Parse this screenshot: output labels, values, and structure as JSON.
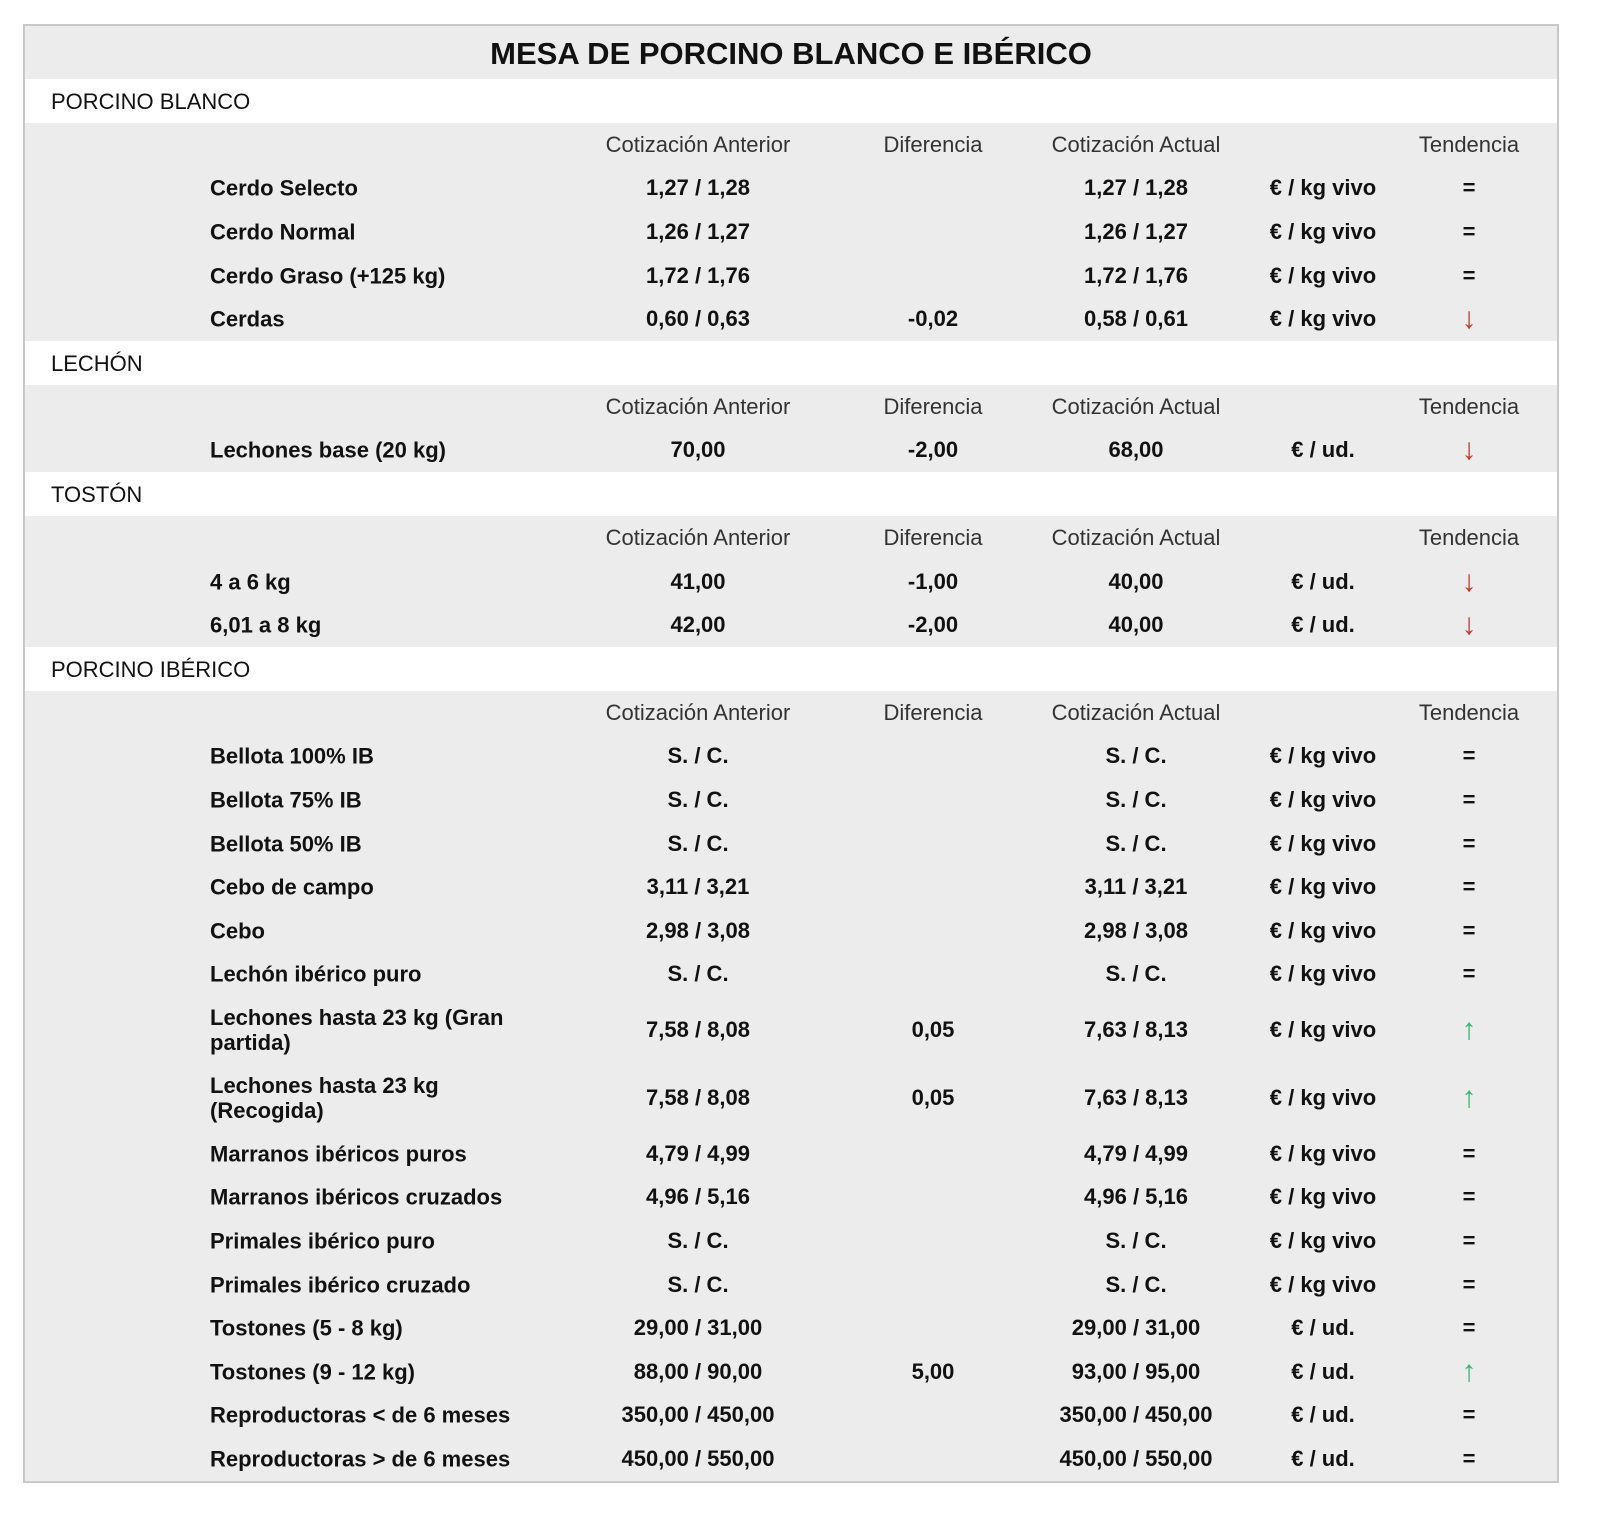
{
  "title": "MESA DE PORCINO BLANCO E IBÉRICO",
  "headers": [
    "Cotización Anterior",
    "Diferencia",
    "Cotización Actual",
    "",
    "Tendencia"
  ],
  "trend_colors": {
    "down": "#c0392b",
    "up": "#3cb371"
  },
  "sections": [
    {
      "name": "PORCINO BLANCO",
      "rows": [
        {
          "label": "Cerdo Selecto",
          "prev": "1,27 / 1,28",
          "diff": "",
          "curr": "1,27 / 1,28",
          "unit": "€ / kg vivo",
          "trend": "="
        },
        {
          "label": "Cerdo Normal",
          "prev": "1,26 / 1,27",
          "diff": "",
          "curr": "1,26 / 1,27",
          "unit": "€ / kg vivo",
          "trend": "="
        },
        {
          "label": "Cerdo Graso (+125 kg)",
          "prev": "1,72 / 1,76",
          "diff": "",
          "curr": "1,72 / 1,76",
          "unit": "€ / kg vivo",
          "trend": "="
        },
        {
          "label": "Cerdas",
          "prev": "0,60 / 0,63",
          "diff": "-0,02",
          "curr": "0,58 / 0,61",
          "unit": "€ / kg vivo",
          "trend": "down"
        }
      ]
    },
    {
      "name": "LECHÓN",
      "rows": [
        {
          "label": "Lechones base (20 kg)",
          "prev": "70,00",
          "diff": "-2,00",
          "curr": "68,00",
          "unit": "€ / ud.",
          "trend": "down"
        }
      ]
    },
    {
      "name": "TOSTÓN",
      "rows": [
        {
          "label": "4 a 6 kg",
          "prev": "41,00",
          "diff": "-1,00",
          "curr": "40,00",
          "unit": "€ / ud.",
          "trend": "down"
        },
        {
          "label": "6,01 a 8 kg",
          "prev": "42,00",
          "diff": "-2,00",
          "curr": "40,00",
          "unit": "€ / ud.",
          "trend": "down"
        }
      ]
    },
    {
      "name": "PORCINO IBÉRICO",
      "rows": [
        {
          "label": "Bellota 100% IB",
          "prev": "S. / C.",
          "diff": "",
          "curr": "S. / C.",
          "unit": "€ / kg vivo",
          "trend": "="
        },
        {
          "label": "Bellota 75% IB",
          "prev": "S. / C.",
          "diff": "",
          "curr": "S. / C.",
          "unit": "€ / kg vivo",
          "trend": "="
        },
        {
          "label": "Bellota 50% IB",
          "prev": "S. / C.",
          "diff": "",
          "curr": "S. / C.",
          "unit": "€ / kg vivo",
          "trend": "="
        },
        {
          "label": "Cebo de campo",
          "prev": "3,11 / 3,21",
          "diff": "",
          "curr": "3,11 / 3,21",
          "unit": "€ / kg vivo",
          "trend": "="
        },
        {
          "label": "Cebo",
          "prev": "2,98 / 3,08",
          "diff": "",
          "curr": "2,98 / 3,08",
          "unit": "€ / kg vivo",
          "trend": "="
        },
        {
          "label": "Lechón ibérico puro",
          "prev": "S. / C.",
          "diff": "",
          "curr": "S. / C.",
          "unit": "€ / kg vivo",
          "trend": "="
        },
        {
          "label": "Lechones hasta 23 kg (Gran partida)",
          "prev": "7,58 / 8,08",
          "diff": "0,05",
          "curr": "7,63 / 8,13",
          "unit": "€ / kg vivo",
          "trend": "up",
          "tall": true
        },
        {
          "label": "Lechones hasta 23 kg (Recogida)",
          "prev": "7,58 / 8,08",
          "diff": "0,05",
          "curr": "7,63 / 8,13",
          "unit": "€ / kg vivo",
          "trend": "up",
          "tall": true
        },
        {
          "label": "Marranos ibéricos puros",
          "prev": "4,79 / 4,99",
          "diff": "",
          "curr": "4,79 / 4,99",
          "unit": "€ / kg vivo",
          "trend": "="
        },
        {
          "label": "Marranos ibéricos cruzados",
          "prev": "4,96 / 5,16",
          "diff": "",
          "curr": "4,96 / 5,16",
          "unit": "€ / kg vivo",
          "trend": "="
        },
        {
          "label": "Primales ibérico puro",
          "prev": "S. / C.",
          "diff": "",
          "curr": "S. / C.",
          "unit": "€ / kg vivo",
          "trend": "="
        },
        {
          "label": "Primales ibérico cruzado",
          "prev": "S. / C.",
          "diff": "",
          "curr": "S. / C.",
          "unit": "€ / kg vivo",
          "trend": "="
        },
        {
          "label": "Tostones (5 - 8 kg)",
          "prev": "29,00 / 31,00",
          "diff": "",
          "curr": "29,00 / 31,00",
          "unit": "€ / ud.",
          "trend": "="
        },
        {
          "label": "Tostones (9 - 12 kg)",
          "prev": "88,00 / 90,00",
          "diff": "5,00",
          "curr": "93,00 / 95,00",
          "unit": "€ / ud.",
          "trend": "up"
        },
        {
          "label": "Reproductoras < de 6 meses",
          "prev": "350,00 / 450,00",
          "diff": "",
          "curr": "350,00 / 450,00",
          "unit": "€ / ud.",
          "trend": "="
        },
        {
          "label": "Reproductoras > de 6 meses",
          "prev": "450,00 / 550,00",
          "diff": "",
          "curr": "450,00 / 550,00",
          "unit": "€ / ud.",
          "trend": "="
        }
      ]
    }
  ]
}
